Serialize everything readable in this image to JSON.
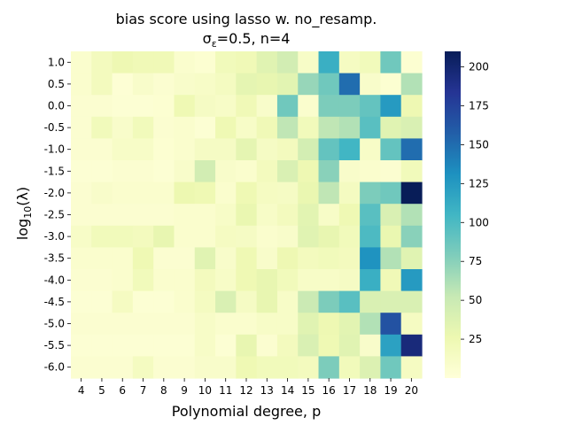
{
  "chart_data": {
    "type": "heatmap",
    "title": "bias score using lasso w. no_resamp.",
    "subtitle": "σε=0.5,  n=4",
    "subtitle_parts": {
      "sigma": "σ",
      "sub": "ε",
      "rest": "=0.5,  n=4"
    },
    "xlabel": "Polynomial degree, p",
    "ylabel_parts": {
      "base": "log",
      "sub": "10",
      "rest": "(λ)"
    },
    "x": [
      "4",
      "5",
      "6",
      "7",
      "8",
      "9",
      "10",
      "11",
      "12",
      "13",
      "14",
      "15",
      "16",
      "17",
      "18",
      "19",
      "20"
    ],
    "y": [
      "1.0",
      "0.5",
      "0.0",
      "-0.5",
      "-1.0",
      "-1.5",
      "-2.0",
      "-2.5",
      "-3.0",
      "-3.5",
      "-4.0",
      "-4.5",
      "-5.0",
      "-5.5",
      "-6.0"
    ],
    "values": [
      [
        8,
        18,
        25,
        22,
        22,
        8,
        5,
        20,
        22,
        35,
        45,
        12,
        110,
        15,
        20,
        85,
        5
      ],
      [
        8,
        18,
        3,
        10,
        6,
        10,
        12,
        16,
        32,
        30,
        34,
        70,
        85,
        150,
        10,
        5,
        60
      ],
      [
        6,
        6,
        4,
        4,
        5,
        24,
        14,
        12,
        22,
        10,
        85,
        8,
        80,
        80,
        90,
        125,
        25
      ],
      [
        6,
        20,
        10,
        20,
        6,
        8,
        4,
        24,
        12,
        22,
        55,
        20,
        55,
        60,
        95,
        35,
        40
      ],
      [
        6,
        6,
        12,
        12,
        5,
        8,
        14,
        14,
        32,
        14,
        18,
        44,
        90,
        105,
        12,
        90,
        150
      ],
      [
        4,
        4,
        6,
        6,
        4,
        10,
        45,
        10,
        8,
        18,
        40,
        25,
        75,
        10,
        8,
        6,
        20
      ],
      [
        6,
        10,
        8,
        8,
        8,
        26,
        24,
        8,
        24,
        15,
        14,
        28,
        55,
        16,
        80,
        85,
        210
      ],
      [
        6,
        6,
        6,
        6,
        6,
        8,
        8,
        12,
        28,
        12,
        18,
        34,
        12,
        24,
        95,
        40,
        60
      ],
      [
        12,
        20,
        20,
        18,
        30,
        8,
        8,
        15,
        14,
        8,
        10,
        35,
        30,
        20,
        100,
        28,
        75
      ],
      [
        8,
        8,
        8,
        24,
        6,
        6,
        35,
        10,
        24,
        10,
        25,
        18,
        20,
        18,
        130,
        60,
        35
      ],
      [
        6,
        6,
        8,
        20,
        8,
        8,
        18,
        12,
        24,
        30,
        20,
        12,
        12,
        14,
        110,
        22,
        125
      ],
      [
        4,
        4,
        15,
        4,
        4,
        8,
        16,
        40,
        14,
        30,
        12,
        50,
        80,
        95,
        40,
        40,
        40
      ],
      [
        6,
        6,
        6,
        6,
        6,
        6,
        12,
        8,
        8,
        12,
        12,
        35,
        25,
        34,
        60,
        165,
        15
      ],
      [
        4,
        4,
        4,
        4,
        4,
        4,
        12,
        4,
        30,
        6,
        18,
        40,
        24,
        35,
        10,
        120,
        195
      ],
      [
        6,
        6,
        6,
        16,
        6,
        6,
        10,
        10,
        24,
        20,
        20,
        18,
        80,
        20,
        38,
        85,
        15
      ]
    ],
    "colorbar": {
      "min": 0,
      "max": 210,
      "ticks": [
        25,
        50,
        75,
        100,
        125,
        150,
        175,
        200
      ]
    }
  }
}
